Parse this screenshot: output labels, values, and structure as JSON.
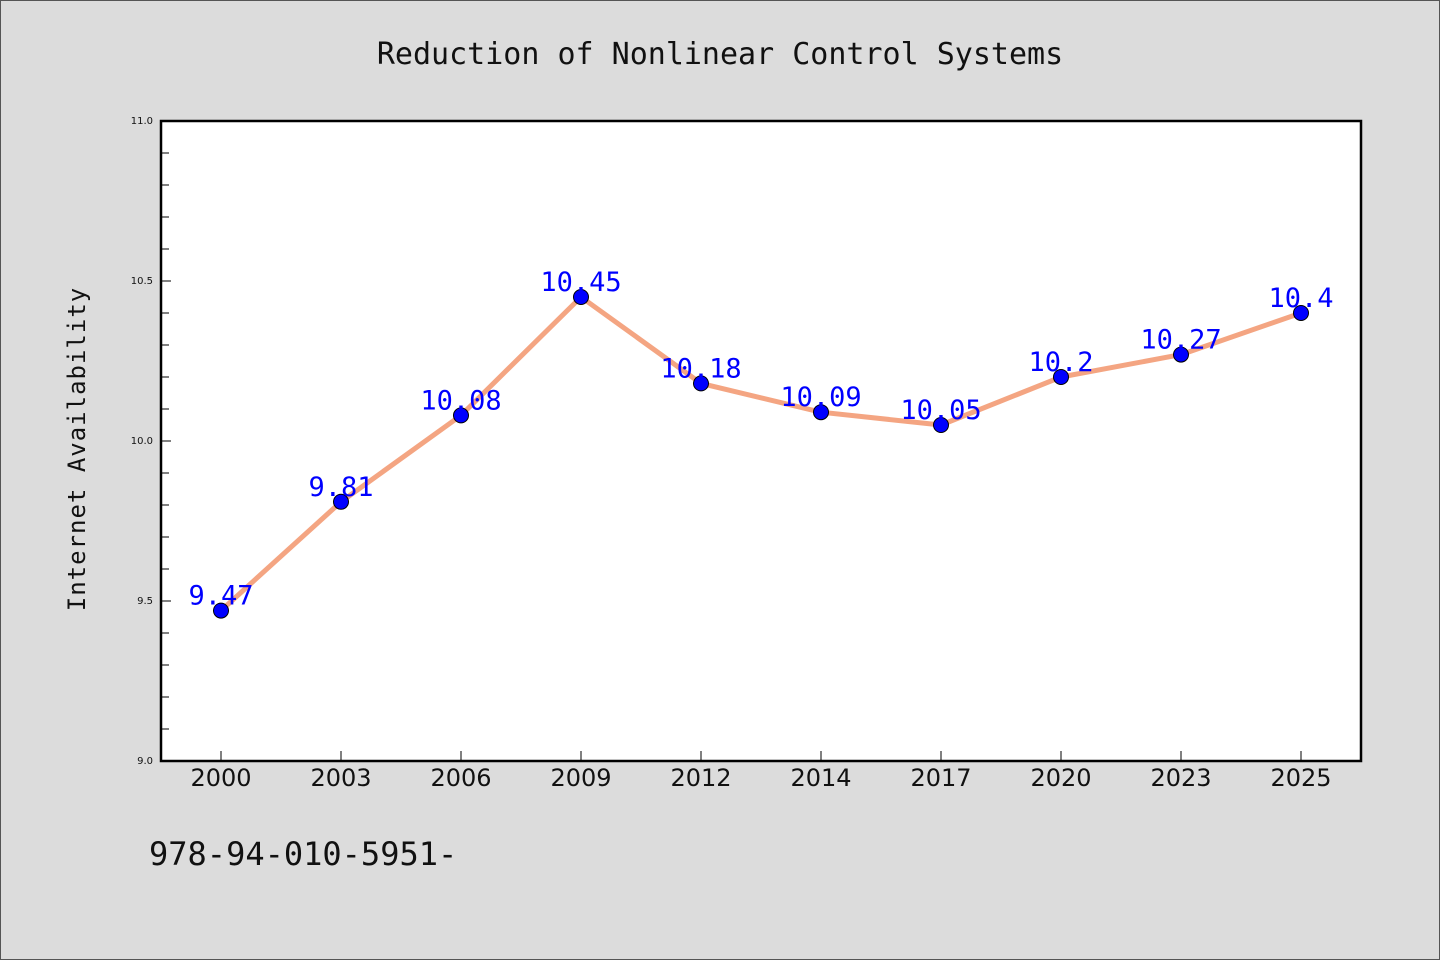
{
  "footer_text": "978-94-010-5951-",
  "chart_data": {
    "type": "line",
    "title": "Reduction of Nonlinear Control Systems",
    "xlabel": "",
    "ylabel": "Internet Availability",
    "categories": [
      "2000",
      "2003",
      "2006",
      "2009",
      "2012",
      "2014",
      "2017",
      "2020",
      "2023",
      "2025"
    ],
    "series": [
      {
        "values": [
          9.47,
          9.81,
          10.08,
          10.45,
          10.18,
          10.09,
          10.05,
          10.2,
          10.27,
          10.4
        ],
        "data_labels": [
          "9.47",
          "9.81",
          "10.08",
          "10.45",
          "10.18",
          "10.09",
          "10.05",
          "10.2",
          "10.27",
          "10.4"
        ]
      }
    ],
    "ylim": [
      9.0,
      11.0
    ],
    "yticks": [
      "9.0",
      "9.5",
      "10.0",
      "10.5",
      "11.0"
    ],
    "grid": false,
    "colors": {
      "line": "#f4a582",
      "marker": "#0000ff",
      "data_label": "#0000ff",
      "plot_background": "#ffffff",
      "figure_background": "#dcdcdc"
    }
  }
}
